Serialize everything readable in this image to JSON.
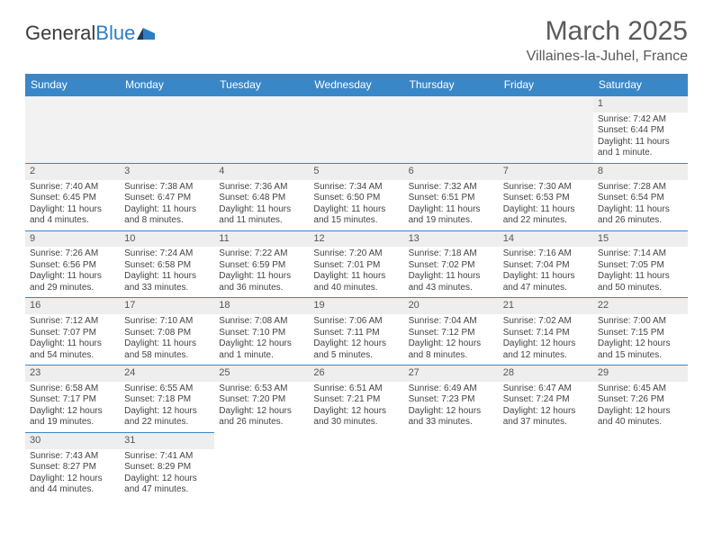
{
  "colors": {
    "header_bg": "#3a87c8",
    "header_text": "#ffffff",
    "border": "#3a87c8",
    "daynum_bg": "#eeeeee",
    "empty_bg": "#f2f2f2",
    "text": "#444444",
    "title": "#5a5a5a",
    "logo_dark": "#3b3b3b",
    "logo_blue": "#2d7dc6"
  },
  "logo": {
    "part1": "General",
    "part2": "Blue"
  },
  "title": "March 2025",
  "location": "Villaines-la-Juhel, France",
  "weekdays": [
    "Sunday",
    "Monday",
    "Tuesday",
    "Wednesday",
    "Thursday",
    "Friday",
    "Saturday"
  ],
  "weeks": [
    [
      null,
      null,
      null,
      null,
      null,
      null,
      {
        "n": "1",
        "sunrise": "Sunrise: 7:42 AM",
        "sunset": "Sunset: 6:44 PM",
        "daylight": "Daylight: 11 hours and 1 minute."
      }
    ],
    [
      {
        "n": "2",
        "sunrise": "Sunrise: 7:40 AM",
        "sunset": "Sunset: 6:45 PM",
        "daylight": "Daylight: 11 hours and 4 minutes."
      },
      {
        "n": "3",
        "sunrise": "Sunrise: 7:38 AM",
        "sunset": "Sunset: 6:47 PM",
        "daylight": "Daylight: 11 hours and 8 minutes."
      },
      {
        "n": "4",
        "sunrise": "Sunrise: 7:36 AM",
        "sunset": "Sunset: 6:48 PM",
        "daylight": "Daylight: 11 hours and 11 minutes."
      },
      {
        "n": "5",
        "sunrise": "Sunrise: 7:34 AM",
        "sunset": "Sunset: 6:50 PM",
        "daylight": "Daylight: 11 hours and 15 minutes."
      },
      {
        "n": "6",
        "sunrise": "Sunrise: 7:32 AM",
        "sunset": "Sunset: 6:51 PM",
        "daylight": "Daylight: 11 hours and 19 minutes."
      },
      {
        "n": "7",
        "sunrise": "Sunrise: 7:30 AM",
        "sunset": "Sunset: 6:53 PM",
        "daylight": "Daylight: 11 hours and 22 minutes."
      },
      {
        "n": "8",
        "sunrise": "Sunrise: 7:28 AM",
        "sunset": "Sunset: 6:54 PM",
        "daylight": "Daylight: 11 hours and 26 minutes."
      }
    ],
    [
      {
        "n": "9",
        "sunrise": "Sunrise: 7:26 AM",
        "sunset": "Sunset: 6:56 PM",
        "daylight": "Daylight: 11 hours and 29 minutes."
      },
      {
        "n": "10",
        "sunrise": "Sunrise: 7:24 AM",
        "sunset": "Sunset: 6:58 PM",
        "daylight": "Daylight: 11 hours and 33 minutes."
      },
      {
        "n": "11",
        "sunrise": "Sunrise: 7:22 AM",
        "sunset": "Sunset: 6:59 PM",
        "daylight": "Daylight: 11 hours and 36 minutes."
      },
      {
        "n": "12",
        "sunrise": "Sunrise: 7:20 AM",
        "sunset": "Sunset: 7:01 PM",
        "daylight": "Daylight: 11 hours and 40 minutes."
      },
      {
        "n": "13",
        "sunrise": "Sunrise: 7:18 AM",
        "sunset": "Sunset: 7:02 PM",
        "daylight": "Daylight: 11 hours and 43 minutes."
      },
      {
        "n": "14",
        "sunrise": "Sunrise: 7:16 AM",
        "sunset": "Sunset: 7:04 PM",
        "daylight": "Daylight: 11 hours and 47 minutes."
      },
      {
        "n": "15",
        "sunrise": "Sunrise: 7:14 AM",
        "sunset": "Sunset: 7:05 PM",
        "daylight": "Daylight: 11 hours and 50 minutes."
      }
    ],
    [
      {
        "n": "16",
        "sunrise": "Sunrise: 7:12 AM",
        "sunset": "Sunset: 7:07 PM",
        "daylight": "Daylight: 11 hours and 54 minutes."
      },
      {
        "n": "17",
        "sunrise": "Sunrise: 7:10 AM",
        "sunset": "Sunset: 7:08 PM",
        "daylight": "Daylight: 11 hours and 58 minutes."
      },
      {
        "n": "18",
        "sunrise": "Sunrise: 7:08 AM",
        "sunset": "Sunset: 7:10 PM",
        "daylight": "Daylight: 12 hours and 1 minute."
      },
      {
        "n": "19",
        "sunrise": "Sunrise: 7:06 AM",
        "sunset": "Sunset: 7:11 PM",
        "daylight": "Daylight: 12 hours and 5 minutes."
      },
      {
        "n": "20",
        "sunrise": "Sunrise: 7:04 AM",
        "sunset": "Sunset: 7:12 PM",
        "daylight": "Daylight: 12 hours and 8 minutes."
      },
      {
        "n": "21",
        "sunrise": "Sunrise: 7:02 AM",
        "sunset": "Sunset: 7:14 PM",
        "daylight": "Daylight: 12 hours and 12 minutes."
      },
      {
        "n": "22",
        "sunrise": "Sunrise: 7:00 AM",
        "sunset": "Sunset: 7:15 PM",
        "daylight": "Daylight: 12 hours and 15 minutes."
      }
    ],
    [
      {
        "n": "23",
        "sunrise": "Sunrise: 6:58 AM",
        "sunset": "Sunset: 7:17 PM",
        "daylight": "Daylight: 12 hours and 19 minutes."
      },
      {
        "n": "24",
        "sunrise": "Sunrise: 6:55 AM",
        "sunset": "Sunset: 7:18 PM",
        "daylight": "Daylight: 12 hours and 22 minutes."
      },
      {
        "n": "25",
        "sunrise": "Sunrise: 6:53 AM",
        "sunset": "Sunset: 7:20 PM",
        "daylight": "Daylight: 12 hours and 26 minutes."
      },
      {
        "n": "26",
        "sunrise": "Sunrise: 6:51 AM",
        "sunset": "Sunset: 7:21 PM",
        "daylight": "Daylight: 12 hours and 30 minutes."
      },
      {
        "n": "27",
        "sunrise": "Sunrise: 6:49 AM",
        "sunset": "Sunset: 7:23 PM",
        "daylight": "Daylight: 12 hours and 33 minutes."
      },
      {
        "n": "28",
        "sunrise": "Sunrise: 6:47 AM",
        "sunset": "Sunset: 7:24 PM",
        "daylight": "Daylight: 12 hours and 37 minutes."
      },
      {
        "n": "29",
        "sunrise": "Sunrise: 6:45 AM",
        "sunset": "Sunset: 7:26 PM",
        "daylight": "Daylight: 12 hours and 40 minutes."
      }
    ],
    [
      {
        "n": "30",
        "sunrise": "Sunrise: 7:43 AM",
        "sunset": "Sunset: 8:27 PM",
        "daylight": "Daylight: 12 hours and 44 minutes."
      },
      {
        "n": "31",
        "sunrise": "Sunrise: 7:41 AM",
        "sunset": "Sunset: 8:29 PM",
        "daylight": "Daylight: 12 hours and 47 minutes."
      },
      null,
      null,
      null,
      null,
      null
    ]
  ]
}
